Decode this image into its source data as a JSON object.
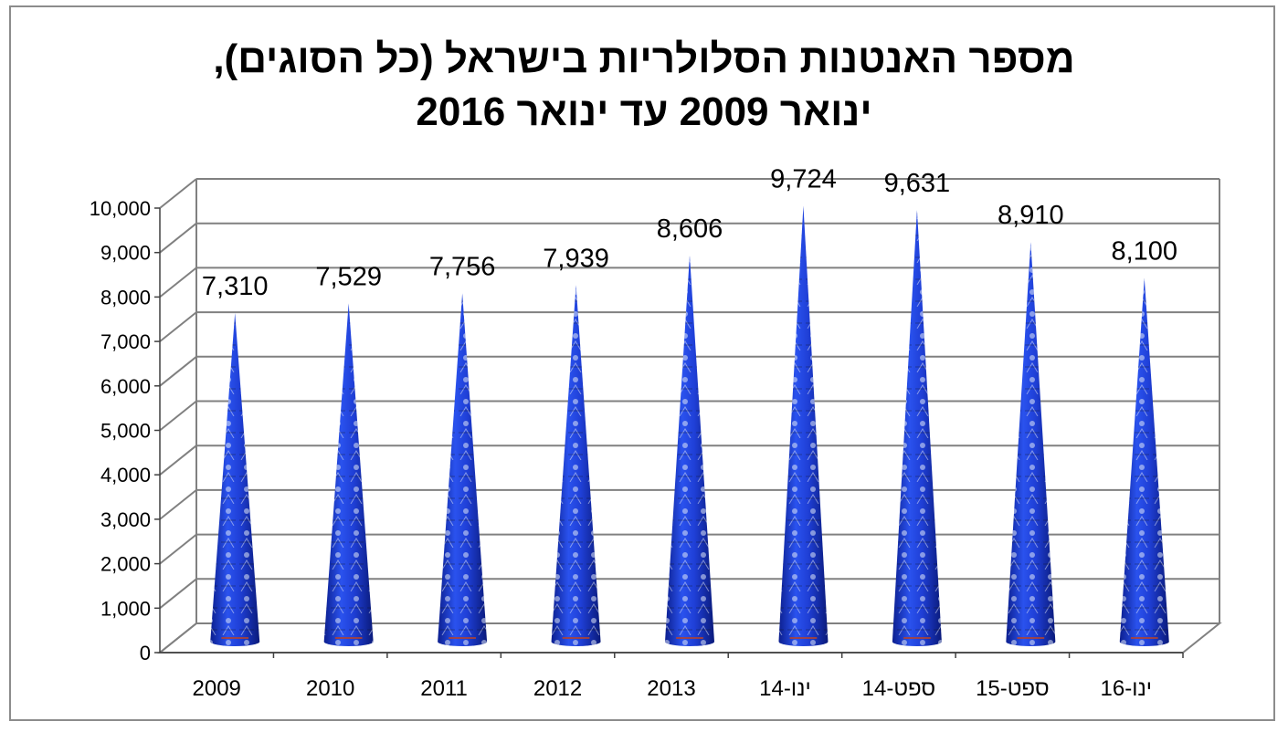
{
  "chart_data": {
    "type": "bar",
    "title_lines": [
      "מספר האנטנות הסלולריות בישראל (כל הסוגים),",
      "ינואר 2009 עד ינואר 2016"
    ],
    "categories": [
      "2009",
      "2010",
      "2011",
      "2012",
      "2013",
      "ינו-14",
      "ספט-14",
      "ספט-15",
      "ינו-16"
    ],
    "values": [
      7310,
      7529,
      7756,
      7939,
      8606,
      9724,
      9631,
      8910,
      8100
    ],
    "data_labels": [
      "7,310",
      "7,529",
      "7,756",
      "7,939",
      "8,606",
      "9,724",
      "9,631",
      "8,910",
      "8,100"
    ],
    "y_ticks": [
      "0",
      "1,000",
      "2,000",
      "3,000",
      "4,000",
      "5,000",
      "6,000",
      "7,000",
      "8,000",
      "9,000",
      "10,000"
    ],
    "ylim": [
      0,
      10000
    ],
    "bar_shape": "cone",
    "grid": true,
    "colors": {
      "cone": "#1f3fd6",
      "cone_dark": "#0c1f8f",
      "grid": "#808080"
    }
  }
}
